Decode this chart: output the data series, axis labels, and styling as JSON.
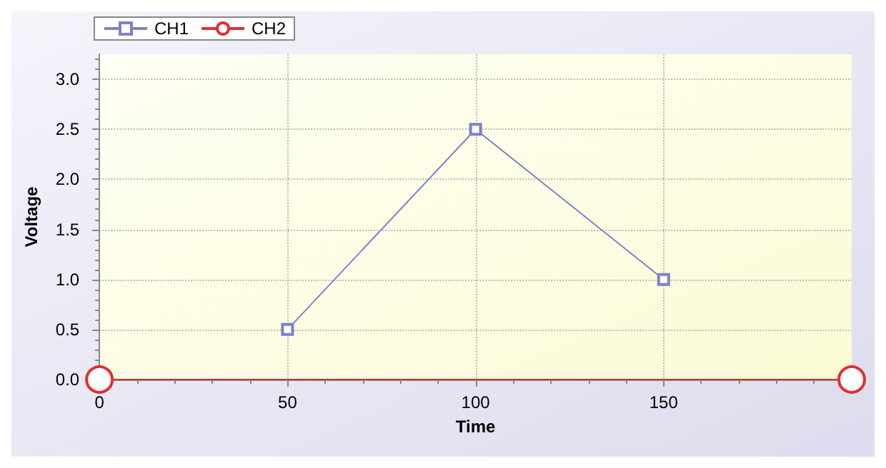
{
  "chart_data": {
    "type": "line",
    "xlabel": "Time",
    "ylabel": "Voltage",
    "xlim": [
      0,
      200
    ],
    "xticks": [
      0,
      50,
      100,
      150
    ],
    "ylim": [
      0,
      3.25
    ],
    "yticks": [
      {
        "value": 0,
        "label": "0.0"
      },
      {
        "value": 0.5,
        "label": "0.5"
      },
      {
        "value": 1,
        "label": "1.0"
      },
      {
        "value": 1.5,
        "label": "1.5"
      },
      {
        "value": 2,
        "label": "2.0"
      },
      {
        "value": 2.5,
        "label": "2.5"
      },
      {
        "value": 3,
        "label": "3.0"
      }
    ],
    "grid": true,
    "legend": "top left",
    "line_style": "solid",
    "series": [
      {
        "name": "CH1",
        "color": "#8080c8",
        "marker": "square",
        "x": [
          50,
          100,
          150
        ],
        "values": [
          0.5,
          2.5,
          1.0
        ]
      },
      {
        "name": "CH2",
        "color": "#e03030",
        "marker": "circle",
        "x": [
          0,
          200
        ],
        "values": [
          0,
          0
        ]
      }
    ]
  }
}
